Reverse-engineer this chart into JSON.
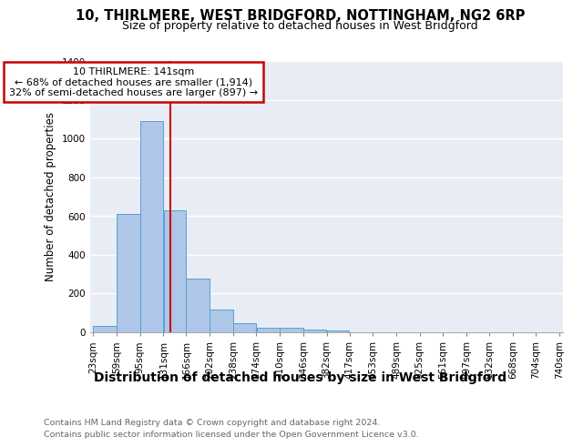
{
  "title1": "10, THIRLMERE, WEST BRIDGFORD, NOTTINGHAM, NG2 6RP",
  "title2": "Size of property relative to detached houses in West Bridgford",
  "xlabel": "Distribution of detached houses by size in West Bridgford",
  "ylabel": "Number of detached properties",
  "footnote1": "Contains HM Land Registry data © Crown copyright and database right 2024.",
  "footnote2": "Contains public sector information licensed under the Open Government Licence v3.0.",
  "bar_left_edges": [
    23,
    59,
    95,
    131,
    166,
    202,
    238,
    274,
    310,
    346,
    382,
    417,
    453,
    489,
    525,
    561,
    597,
    632,
    668,
    704
  ],
  "bar_widths": [
    36,
    36,
    36,
    35,
    36,
    36,
    36,
    36,
    36,
    36,
    35,
    36,
    36,
    36,
    36,
    36,
    35,
    36,
    36,
    36
  ],
  "bar_heights": [
    30,
    610,
    1090,
    630,
    275,
    115,
    45,
    20,
    20,
    10,
    5,
    0,
    0,
    0,
    0,
    0,
    0,
    0,
    0,
    0
  ],
  "bar_color": "#aec6e8",
  "bar_edge_color": "#5a9fd4",
  "property_line_x": 141,
  "property_line_color": "#cc0000",
  "annotation_text": "10 THIRLMERE: 141sqm\n← 68% of detached houses are smaller (1,914)\n32% of semi-detached houses are larger (897) →",
  "annotation_box_color": "#cc0000",
  "annotation_text_color": "#000000",
  "ylim": [
    0,
    1400
  ],
  "xlim": [
    23,
    740
  ],
  "yticks": [
    0,
    200,
    400,
    600,
    800,
    1000,
    1200,
    1400
  ],
  "xtick_labels": [
    "23sqm",
    "59sqm",
    "95sqm",
    "131sqm",
    "166sqm",
    "202sqm",
    "238sqm",
    "274sqm",
    "310sqm",
    "346sqm",
    "382sqm",
    "417sqm",
    "453sqm",
    "489sqm",
    "525sqm",
    "561sqm",
    "597sqm",
    "632sqm",
    "668sqm",
    "704sqm",
    "740sqm"
  ],
  "xtick_positions": [
    23,
    59,
    95,
    131,
    166,
    202,
    238,
    274,
    310,
    346,
    382,
    417,
    453,
    489,
    525,
    561,
    597,
    632,
    668,
    704,
    740
  ],
  "plot_bg_color": "#e8edf5",
  "grid_color": "#ffffff",
  "title1_fontsize": 10.5,
  "title2_fontsize": 9,
  "xlabel_fontsize": 10,
  "ylabel_fontsize": 8.5,
  "tick_fontsize": 7.5,
  "footnote_fontsize": 6.8,
  "annotation_fontsize": 8
}
